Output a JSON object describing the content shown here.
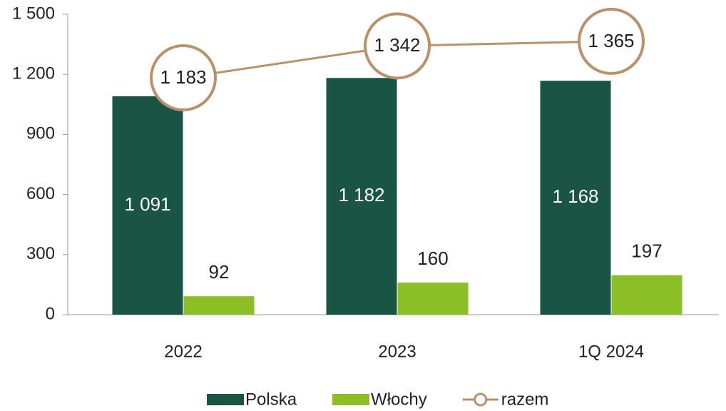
{
  "chart_data": {
    "type": "bar",
    "categories": [
      "2022",
      "2023",
      "1Q 2024"
    ],
    "series": [
      {
        "name": "Polska",
        "type": "bar",
        "color": "#1a5444",
        "values": [
          1091,
          1182,
          1168
        ],
        "value_labels": [
          "1 091",
          "1 182",
          "1 168"
        ]
      },
      {
        "name": "Włochy",
        "type": "bar",
        "color": "#8cbf26",
        "values": [
          92,
          160,
          197
        ]
      },
      {
        "name": "razem",
        "type": "line",
        "color": "#b8926a",
        "values": [
          1183,
          1342,
          1365
        ],
        "value_labels": [
          "1 183",
          "1 342",
          "1 365"
        ]
      }
    ],
    "ylim": [
      0,
      1500
    ],
    "yticks": [
      0,
      300,
      600,
      900,
      {
        "value": 1200,
        "label": "1 200"
      },
      {
        "value": 1500,
        "label": "1 500"
      }
    ],
    "legend": "bottom"
  }
}
